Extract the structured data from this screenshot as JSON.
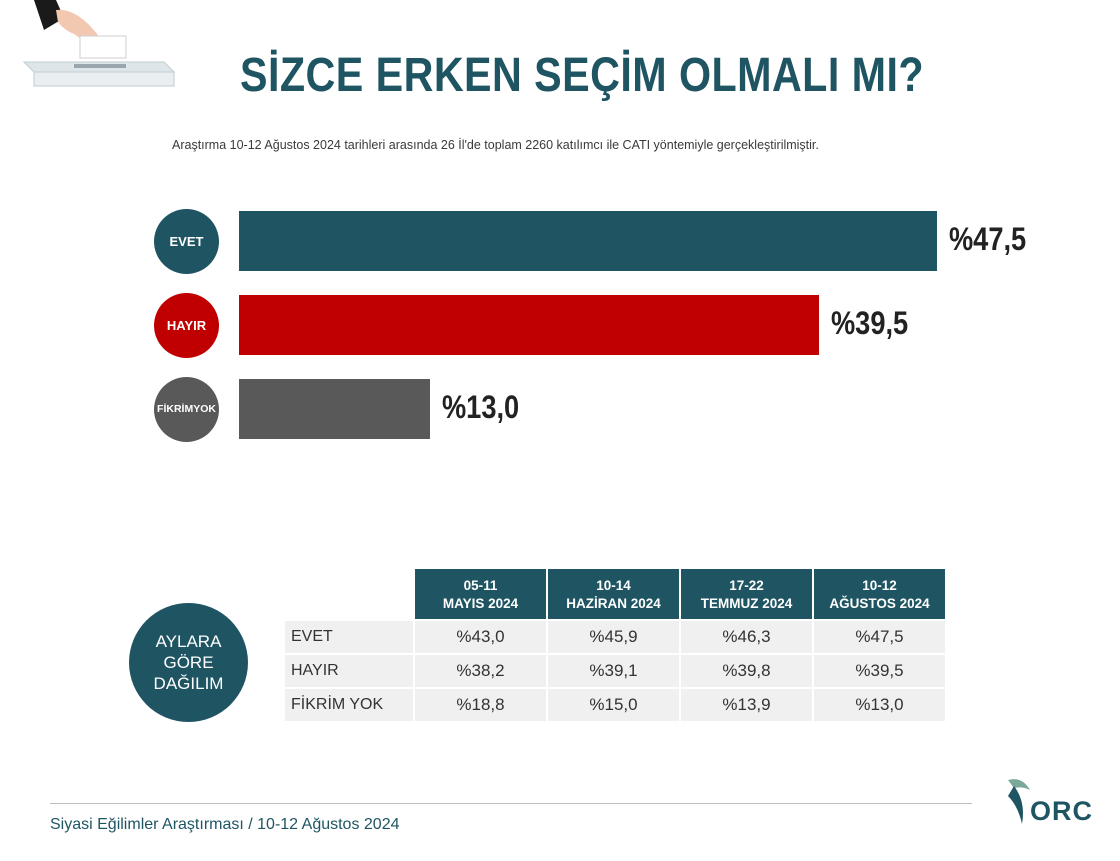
{
  "header": {
    "title": "SİZCE ERKEN SEÇİM OLMALI MI?",
    "subtitle": "Araştırma 10-12 Ağustos 2024 tarihleri arasında 26 İl'de toplam 2260 katılımcı ile CATI yöntemiyle gerçekleştirilmiştir."
  },
  "chart_data": {
    "type": "bar",
    "orientation": "horizontal",
    "categories": [
      "EVET",
      "HAYIR",
      "FİKRİM YOK"
    ],
    "category_lines": [
      [
        "EVET"
      ],
      [
        "HAYIR"
      ],
      [
        "FİKRİM",
        "YOK"
      ]
    ],
    "values": [
      47.5,
      39.5,
      13.0
    ],
    "value_labels": [
      "%47,5",
      "%39,5",
      "%13,0"
    ],
    "colors": [
      "#1f5563",
      "#c00000",
      "#595959"
    ],
    "xlim": [
      0,
      47.5
    ]
  },
  "table": {
    "circle_lines": [
      "AYLARA",
      "GÖRE",
      "DAĞILIM"
    ],
    "columns": [
      [
        "05-11",
        "MAYIS 2024"
      ],
      [
        "10-14",
        "HAZİRAN 2024"
      ],
      [
        "17-22",
        "TEMMUZ 2024"
      ],
      [
        "10-12",
        "AĞUSTOS 2024"
      ]
    ],
    "rows": [
      {
        "label": "EVET",
        "values": [
          "%43,0",
          "%45,9",
          "%46,3",
          "%47,5"
        ]
      },
      {
        "label": "HAYIR",
        "values": [
          "%38,2",
          "%39,1",
          "%39,8",
          "%39,5"
        ]
      },
      {
        "label": "FİKRİM YOK",
        "values": [
          "%18,8",
          "%15,0",
          "%13,9",
          "%13,0"
        ]
      }
    ]
  },
  "footer": {
    "text": "Siyasi Eğilimler Araştırması / 10-12 Ağustos 2024",
    "logo_text": "ORC"
  },
  "colors": {
    "accent": "#1f5563",
    "hayir": "#c00000",
    "fikrim_yok": "#595959"
  }
}
